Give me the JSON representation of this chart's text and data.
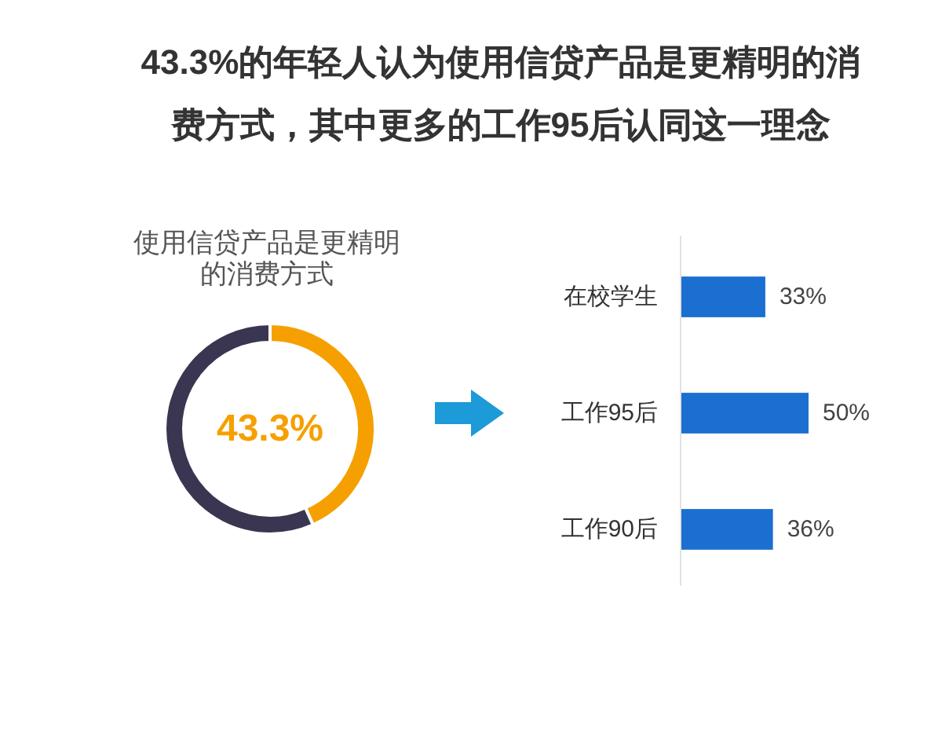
{
  "chart_data": [
    {
      "type": "other",
      "title": "43.3%的年轻人认为使用信贷产品是更精明的消费方式，其中更多的工作95后认同这一理念"
    },
    {
      "type": "donut",
      "title": "使用信贷产品是更精明的消费方式",
      "categories": [
        null,
        null
      ],
      "values": [
        43.3,
        56.7
      ],
      "colors": [
        "#f5a000",
        "#3a3651"
      ],
      "annotations": [
        "43.3%"
      ]
    },
    {
      "type": "bar",
      "orientation": "horizontal",
      "categories": [
        "在校学生",
        "工作95后",
        "工作90后"
      ],
      "values": [
        33,
        50,
        36
      ],
      "color": "#1b6fd1",
      "value_labels": [
        "33%",
        "50%",
        "36%"
      ]
    }
  ]
}
